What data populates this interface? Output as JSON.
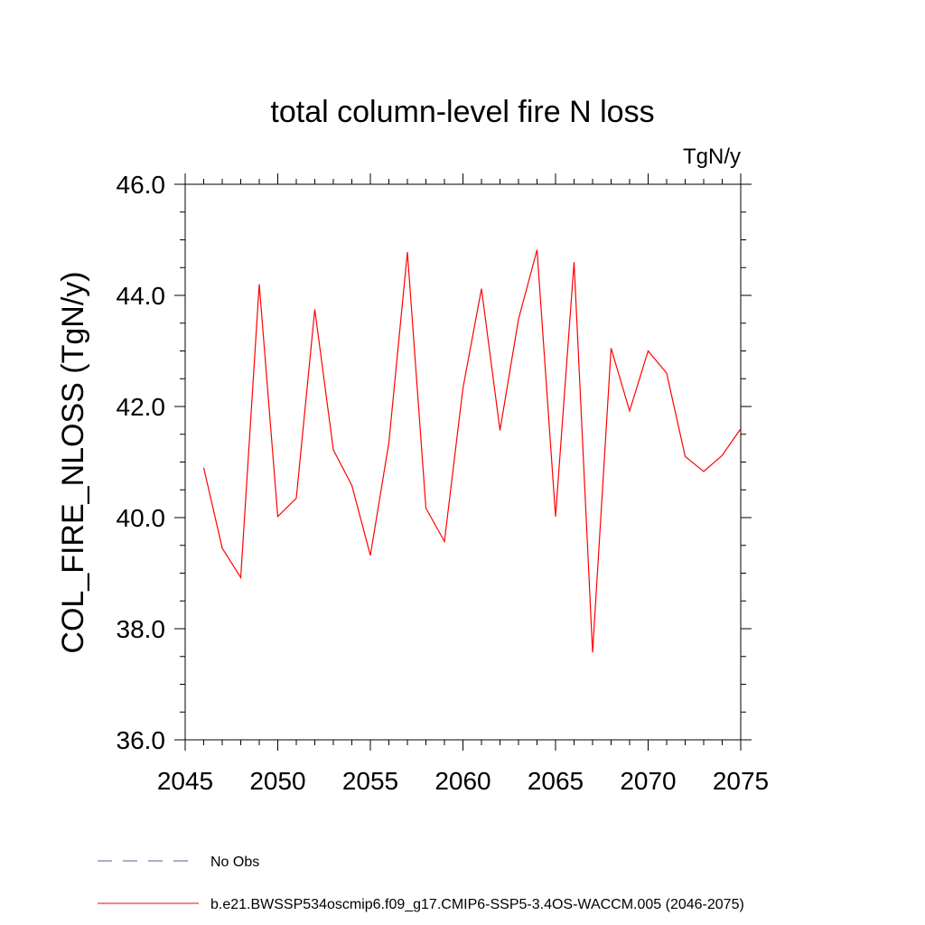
{
  "chart_data": {
    "type": "line",
    "title": "total column-level fire N loss",
    "units_label": "TgN/y",
    "ylabel": "COL_FIRE_NLOSS  (TgN/y)",
    "xlabel": "",
    "xlim": [
      2045,
      2075
    ],
    "ylim": [
      36.0,
      46.0
    ],
    "x_ticks": [
      "2045",
      "2050",
      "2055",
      "2060",
      "2065",
      "2070",
      "2075"
    ],
    "y_ticks": [
      "36.0",
      "38.0",
      "40.0",
      "42.0",
      "44.0",
      "46.0"
    ],
    "grid": false,
    "series": [
      {
        "name": "b.e21.BWSSP534oscmip6.f09_g17.CMIP6-SSP5-3.4OS-WACCM.005 (2046-2075)",
        "color": "#ff0000",
        "x": [
          2046,
          2047,
          2048,
          2049,
          2050,
          2051,
          2052,
          2053,
          2054,
          2055,
          2056,
          2057,
          2058,
          2059,
          2060,
          2061,
          2062,
          2063,
          2064,
          2065,
          2066,
          2067,
          2068,
          2069,
          2070,
          2071,
          2072,
          2073,
          2074,
          2075
        ],
        "values": [
          40.9,
          39.45,
          38.92,
          44.2,
          40.02,
          40.35,
          43.75,
          41.22,
          40.58,
          39.32,
          41.35,
          44.78,
          40.17,
          39.57,
          42.33,
          44.12,
          41.57,
          43.57,
          44.82,
          40.02,
          44.6,
          37.57,
          43.05,
          41.92,
          43.0,
          42.6,
          41.1,
          40.83,
          41.12,
          41.6
        ]
      }
    ],
    "legend": {
      "placement": "bottom",
      "entries": [
        {
          "label": "No Obs",
          "color": "#5a5aa0",
          "style": "dashed"
        },
        {
          "label": "b.e21.BWSSP534oscmip6.f09_g17.CMIP6-SSP5-3.4OS-WACCM.005 (2046-2075)",
          "color": "#ff0000",
          "style": "solid"
        }
      ]
    }
  }
}
